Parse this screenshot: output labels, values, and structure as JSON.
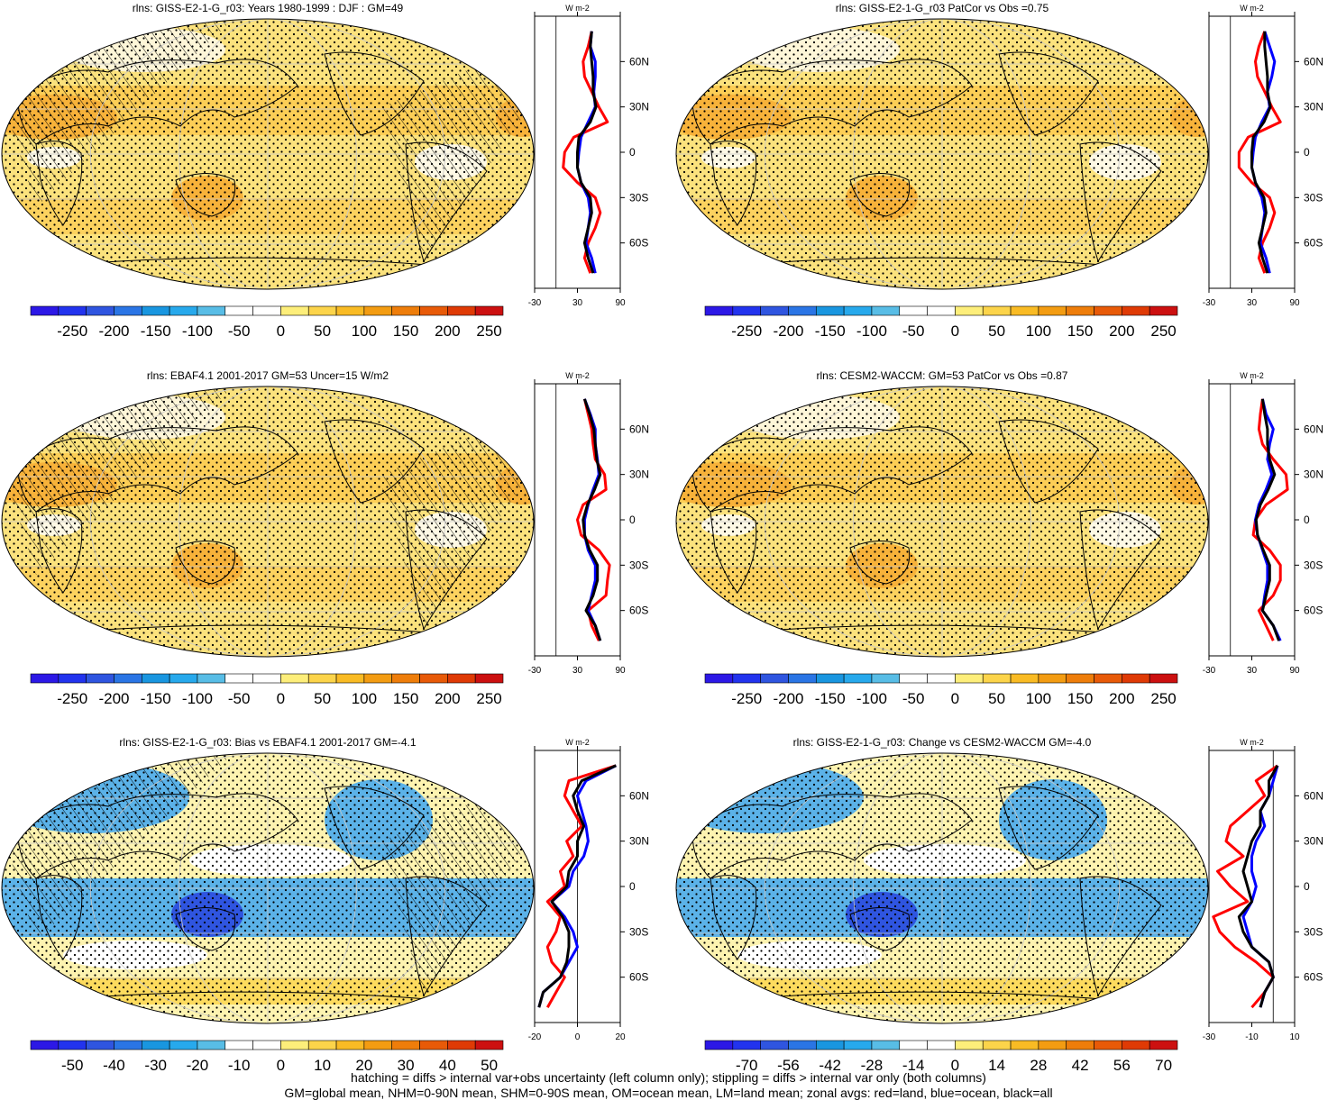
{
  "chart_data": [
    {
      "type": "heatmap",
      "title": "rlns: GISS-E2-1-G_r03: Years 1980-1999 : DJF : GM=49",
      "colorbar": {
        "ticks": [
          "-250",
          "-200",
          "-150",
          "-100",
          "-50",
          "0",
          "50",
          "100",
          "150",
          "200",
          "250"
        ]
      },
      "zonal": {
        "ticks": [
          "-30",
          "30",
          "90"
        ],
        "range": [
          -30,
          90
        ],
        "unit": "W m-2",
        "lat_labels": [
          "60N",
          "30N",
          "0",
          "30S",
          "60S"
        ],
        "lat": [
          80,
          70,
          60,
          50,
          40,
          30,
          20,
          10,
          0,
          -10,
          -20,
          -30,
          -40,
          -50,
          -60,
          -70,
          -80
        ],
        "series": [
          {
            "color": "#ff0000",
            "values": [
              50,
              45,
              38,
              40,
              50,
              60,
              72,
              25,
              12,
              10,
              30,
              55,
              62,
              55,
              45,
              40,
              48
            ]
          },
          {
            "color": "#0000ff",
            "values": [
              50,
              48,
              55,
              55,
              53,
              55,
              45,
              35,
              32,
              30,
              35,
              45,
              48,
              45,
              42,
              50,
              55
            ]
          },
          {
            "color": "#000000",
            "values": [
              50,
              48,
              50,
              52,
              52,
              56,
              48,
              32,
              30,
              30,
              35,
              48,
              50,
              45,
              40,
              45,
              52
            ]
          }
        ]
      }
    },
    {
      "type": "heatmap",
      "title": "rlns: GISS-E2-1-G_r03 PatCor vs Obs =0.75",
      "colorbar": {
        "ticks": [
          "-250",
          "-200",
          "-150",
          "-100",
          "-50",
          "0",
          "50",
          "100",
          "150",
          "200",
          "250"
        ]
      },
      "zonal": {
        "ticks": [
          "-30",
          "30",
          "90"
        ],
        "range": [
          -30,
          90
        ],
        "unit": "W m-2",
        "lat_labels": [
          "60N",
          "30N",
          "0",
          "30S",
          "60S"
        ],
        "lat": [
          80,
          70,
          60,
          50,
          40,
          30,
          20,
          10,
          0,
          -10,
          -20,
          -30,
          -40,
          -50,
          -60,
          -70,
          -80
        ],
        "series": [
          {
            "color": "#ff0000",
            "values": [
              48,
              40,
              35,
              38,
              48,
              58,
              70,
              25,
              12,
              12,
              30,
              55,
              62,
              55,
              45,
              40,
              48
            ]
          },
          {
            "color": "#0000ff",
            "values": [
              48,
              55,
              62,
              58,
              52,
              55,
              44,
              35,
              32,
              30,
              35,
              44,
              48,
              45,
              42,
              50,
              55
            ]
          },
          {
            "color": "#000000",
            "values": [
              48,
              48,
              50,
              52,
              52,
              56,
              47,
              32,
              30,
              30,
              35,
              47,
              50,
              45,
              40,
              45,
              52
            ]
          }
        ]
      }
    },
    {
      "type": "heatmap",
      "title": "rlns: EBAF4.1 2001-2017 GM=53 Uncer=15 W/m2",
      "colorbar": {
        "ticks": [
          "-250",
          "-200",
          "-150",
          "-100",
          "-50",
          "0",
          "50",
          "100",
          "150",
          "200",
          "250"
        ]
      },
      "zonal": {
        "ticks": [
          "-30",
          "30",
          "90"
        ],
        "range": [
          -30,
          90
        ],
        "unit": "W m-2",
        "lat_labels": [
          "60N",
          "30N",
          "0",
          "30S",
          "60S"
        ],
        "lat": [
          80,
          70,
          60,
          50,
          40,
          30,
          20,
          10,
          0,
          -10,
          -20,
          -30,
          -40,
          -50,
          -60,
          -70,
          -80
        ],
        "series": [
          {
            "color": "#ff0000",
            "values": [
              40,
              45,
              50,
              52,
              55,
              68,
              70,
              38,
              30,
              35,
              60,
              75,
              72,
              70,
              45,
              50,
              60
            ]
          },
          {
            "color": "#0000ff",
            "values": [
              40,
              48,
              55,
              55,
              58,
              60,
              52,
              45,
              40,
              40,
              45,
              55,
              55,
              50,
              45,
              55,
              62
            ]
          },
          {
            "color": "#000000",
            "values": [
              40,
              47,
              53,
              55,
              57,
              62,
              54,
              44,
              38,
              40,
              47,
              58,
              58,
              52,
              42,
              55,
              62
            ]
          }
        ]
      }
    },
    {
      "type": "heatmap",
      "title": "rlns: CESM2-WACCM: GM=53 PatCor vs Obs =0.87",
      "colorbar": {
        "ticks": [
          "-250",
          "-200",
          "-150",
          "-100",
          "-50",
          "0",
          "50",
          "100",
          "150",
          "200",
          "250"
        ]
      },
      "zonal": {
        "ticks": [
          "-30",
          "30",
          "90"
        ],
        "range": [
          -30,
          90
        ],
        "unit": "W m-2",
        "lat_labels": [
          "60N",
          "30N",
          "0",
          "30S",
          "60S"
        ],
        "lat": [
          80,
          70,
          60,
          50,
          40,
          30,
          20,
          10,
          0,
          -10,
          -20,
          -30,
          -40,
          -50,
          -60,
          -70,
          -80
        ],
        "series": [
          {
            "color": "#ff0000",
            "values": [
              45,
              42,
              40,
              45,
              60,
              78,
              80,
              50,
              35,
              32,
              55,
              70,
              70,
              60,
              40,
              50,
              60
            ]
          },
          {
            "color": "#0000ff",
            "values": [
              45,
              50,
              60,
              55,
              52,
              58,
              50,
              40,
              35,
              38,
              45,
              52,
              52,
              48,
              45,
              60,
              70
            ]
          },
          {
            "color": "#000000",
            "values": [
              45,
              48,
              52,
              52,
              55,
              62,
              53,
              42,
              36,
              38,
              46,
              55,
              55,
              50,
              45,
              60,
              68
            ]
          }
        ]
      }
    },
    {
      "type": "heatmap",
      "title": "rlns: GISS-E2-1-G_r03: Bias vs EBAF4.1 2001-2017 GM=-4.1",
      "colorbar": {
        "ticks": [
          "-50",
          "-40",
          "-30",
          "-20",
          "-10",
          "0",
          "10",
          "20",
          "30",
          "40",
          "50"
        ]
      },
      "zonal": {
        "ticks": [
          "-20",
          "0",
          "20"
        ],
        "range": [
          -20,
          20
        ],
        "unit": "W m-2",
        "lat_labels": [
          "60N",
          "30N",
          "0",
          "30S",
          "60S"
        ],
        "lat": [
          80,
          70,
          60,
          50,
          40,
          30,
          20,
          10,
          0,
          -10,
          -20,
          -30,
          -40,
          -50,
          -60,
          -70,
          -80
        ],
        "series": [
          {
            "color": "#ff0000",
            "values": [
              18,
              -4,
              -6,
              -2,
              2,
              -5,
              -2,
              -8,
              -6,
              -14,
              -8,
              -10,
              -14,
              -12,
              -6,
              -10,
              -14
            ]
          },
          {
            "color": "#0000ff",
            "values": [
              18,
              4,
              0,
              2,
              4,
              5,
              3,
              -2,
              -4,
              -12,
              -6,
              -2,
              0,
              -4,
              -8,
              -16,
              -18
            ]
          },
          {
            "color": "#000000",
            "values": [
              18,
              2,
              -2,
              0,
              3,
              0,
              0,
              -4,
              -5,
              -12,
              -7,
              -4,
              -4,
              -5,
              -8,
              -16,
              -18
            ]
          }
        ]
      }
    },
    {
      "type": "heatmap",
      "title": "rlns: GISS-E2-1-G_r03: Change vs CESM2-WACCM GM=-4.0",
      "colorbar": {
        "ticks": [
          "-70",
          "-56",
          "-42",
          "-28",
          "-14",
          "0",
          "14",
          "28",
          "42",
          "56",
          "70"
        ]
      },
      "zonal": {
        "ticks": [
          "-30",
          "-10",
          "10"
        ],
        "range": [
          -30,
          10
        ],
        "unit": "W m-2",
        "lat_labels": [
          "60N",
          "30N",
          "0",
          "30S",
          "60S"
        ],
        "lat": [
          80,
          70,
          60,
          50,
          40,
          30,
          20,
          10,
          0,
          -10,
          -20,
          -30,
          -40,
          -50,
          -60,
          -70,
          -80
        ],
        "series": [
          {
            "color": "#ff0000",
            "values": [
              2,
              -8,
              -4,
              -12,
              -20,
              -22,
              -14,
              -26,
              -20,
              -12,
              -28,
              -25,
              -18,
              -8,
              0,
              -4,
              -10
            ]
          },
          {
            "color": "#0000ff",
            "values": [
              2,
              0,
              -2,
              -6,
              -4,
              -8,
              -10,
              -10,
              -8,
              -10,
              -14,
              -12,
              -10,
              -2,
              0,
              -4,
              -6
            ]
          },
          {
            "color": "#000000",
            "values": [
              2,
              -2,
              -2,
              -6,
              -6,
              -10,
              -12,
              -14,
              -12,
              -10,
              -16,
              -14,
              -10,
              -2,
              0,
              -4,
              -6
            ]
          }
        ]
      }
    }
  ],
  "footer": {
    "line1": "hatching = diffs > internal var+obs uncertainty (left column only); stippling = diffs > internal var only (both columns)",
    "line2": "GM=global mean, NHM=0-90N mean, SHM=0-90S mean, OM=ocean mean, LM=land mean; zonal avgs: red=land, blue=ocean, black=all"
  }
}
